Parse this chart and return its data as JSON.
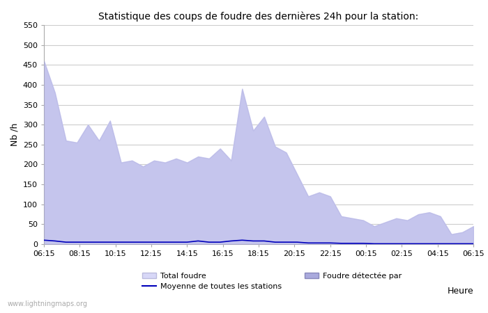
{
  "title": "Statistique des coups de foudre des dernières 24h pour la station:",
  "xlabel": "Heure",
  "ylabel": "Nb /h",
  "watermark": "www.lightningmaps.org",
  "ylim": [
    0,
    550
  ],
  "yticks": [
    0,
    50,
    100,
    150,
    200,
    250,
    300,
    350,
    400,
    450,
    500,
    550
  ],
  "xtick_labels": [
    "06:15",
    "08:15",
    "10:15",
    "12:15",
    "14:15",
    "16:15",
    "18:15",
    "20:15",
    "22:15",
    "00:15",
    "02:15",
    "04:15",
    "06:15"
  ],
  "fill_color_total": "#d8d8f8",
  "fill_color_detectee": "#aaaadd",
  "line_color": "#0000bb",
  "bg_color": "#ffffff",
  "grid_color": "#cccccc",
  "legend_labels": [
    "Total foudre",
    "Foudre détectée par",
    "Moyenne de toutes les stations"
  ],
  "total_foudre": [
    460,
    380,
    260,
    255,
    300,
    260,
    310,
    205,
    210,
    195,
    210,
    205,
    215,
    205,
    220,
    215,
    240,
    210,
    390,
    285,
    320,
    245,
    230,
    175,
    120,
    130,
    120,
    70,
    65,
    60,
    45,
    55,
    65,
    60,
    75,
    80,
    70,
    25,
    30,
    45
  ],
  "foudre_detectee": [
    460,
    380,
    260,
    255,
    300,
    260,
    310,
    205,
    210,
    195,
    210,
    205,
    215,
    205,
    220,
    215,
    240,
    210,
    390,
    285,
    320,
    245,
    230,
    175,
    120,
    130,
    120,
    70,
    65,
    60,
    45,
    55,
    65,
    60,
    75,
    80,
    70,
    25,
    30,
    45
  ],
  "moyenne": [
    10,
    8,
    5,
    5,
    5,
    5,
    5,
    5,
    5,
    5,
    5,
    5,
    5,
    5,
    8,
    5,
    5,
    8,
    10,
    8,
    8,
    5,
    5,
    5,
    3,
    3,
    3,
    2,
    2,
    2,
    1,
    1,
    1,
    1,
    1,
    1,
    1,
    1,
    1,
    1
  ],
  "n_points": 40
}
